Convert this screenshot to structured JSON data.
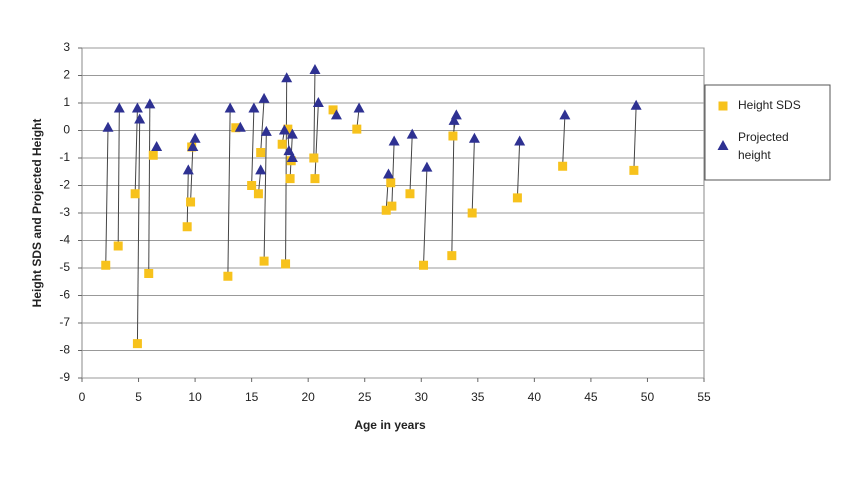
{
  "chart_data": {
    "type": "scatter",
    "x_label": "Age in years",
    "y_label": "Height SDS and Projected Height",
    "xlim": [
      0,
      55
    ],
    "xticks": [
      0,
      5,
      10,
      15,
      20,
      25,
      30,
      35,
      40,
      45,
      50,
      55
    ],
    "ylim": [
      -9,
      3
    ],
    "yticks": [
      -9,
      -8,
      -7,
      -6,
      -5,
      -4,
      -3,
      -2,
      -1,
      0,
      1,
      2,
      3
    ],
    "grid": true,
    "legend": "right",
    "series": [
      {
        "name": "Height SDS",
        "color": "#f7c21c",
        "marker": "square",
        "x": [
          2.1,
          3.2,
          4.7,
          4.9,
          5.9,
          6.3,
          9.3,
          9.6,
          9.7,
          12.9,
          13.6,
          15.0,
          15.6,
          15.8,
          16.1,
          17.7,
          18.0,
          18.2,
          18.4,
          18.5,
          20.5,
          20.6,
          22.2,
          24.3,
          26.9,
          27.4,
          27.3,
          29.0,
          30.2,
          32.7,
          32.8,
          34.5,
          38.5,
          42.5,
          48.8
        ],
        "values": [
          -4.9,
          -4.2,
          -2.3,
          -7.75,
          -5.2,
          -0.9,
          -3.5,
          -2.6,
          -0.6,
          -5.3,
          0.1,
          -2.0,
          -2.3,
          -0.8,
          -4.75,
          -0.5,
          -4.85,
          0.05,
          -1.75,
          -1.1,
          -1.0,
          -1.75,
          0.75,
          0.05,
          -2.9,
          -2.75,
          -1.9,
          -2.3,
          -4.9,
          -4.55,
          -0.2,
          -3.0,
          -2.45,
          -1.3,
          -1.45
        ]
      },
      {
        "name": "Projected height",
        "color": "#2e3192",
        "marker": "triangle",
        "x": [
          2.3,
          3.3,
          4.9,
          5.1,
          6.0,
          6.6,
          9.4,
          9.8,
          10.0,
          13.1,
          14.0,
          15.2,
          15.8,
          16.1,
          16.3,
          17.9,
          18.1,
          18.3,
          18.6,
          18.6,
          20.6,
          20.9,
          22.5,
          24.5,
          27.1,
          27.6,
          27.3,
          29.2,
          30.5,
          32.9,
          33.1,
          34.7,
          38.7,
          42.7,
          49.0
        ],
        "values": [
          0.1,
          0.8,
          0.8,
          0.4,
          0.95,
          -0.6,
          -1.45,
          -0.6,
          -0.3,
          0.8,
          0.1,
          0.8,
          -1.45,
          1.15,
          -0.05,
          0.0,
          1.9,
          -0.75,
          -0.15,
          -1.0,
          2.2,
          1.0,
          0.55,
          0.8,
          -1.6,
          -0.4,
          null,
          -0.15,
          -1.35,
          0.35,
          0.55,
          -0.3,
          -0.4,
          0.55,
          0.9
        ]
      }
    ]
  }
}
